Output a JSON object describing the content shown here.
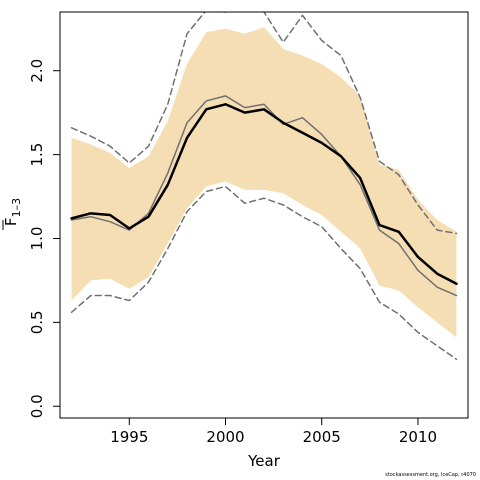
{
  "chart_data": {
    "type": "line",
    "title": "",
    "xlabel": "Year",
    "ylabel": "F̅ 1–3",
    "xlim": [
      1991.4,
      2012.6
    ],
    "ylim": [
      -0.07,
      2.35
    ],
    "x_ticks": [
      1995,
      2000,
      2005,
      2010
    ],
    "y_ticks": [
      0.0,
      0.5,
      1.0,
      1.5,
      2.0
    ],
    "y_tick_labels": [
      "0.0",
      "0.5",
      "1.0",
      "1.5",
      "2.0"
    ],
    "grid": false,
    "legend": "none",
    "x": [
      1992,
      1993,
      1994,
      1995,
      1996,
      1997,
      1998,
      1999,
      2000,
      2001,
      2002,
      2003,
      2004,
      2005,
      2006,
      2007,
      2008,
      2009,
      2010,
      2011,
      2012
    ],
    "band": {
      "color": "#f5deb3",
      "lower": [
        0.63,
        0.75,
        0.76,
        0.7,
        0.77,
        0.97,
        1.18,
        1.31,
        1.34,
        1.29,
        1.29,
        1.27,
        1.2,
        1.14,
        1.04,
        0.94,
        0.72,
        0.69,
        0.59,
        0.5,
        0.41
      ],
      "upper": [
        1.6,
        1.56,
        1.51,
        1.42,
        1.49,
        1.7,
        2.04,
        2.23,
        2.25,
        2.22,
        2.26,
        2.13,
        2.09,
        2.04,
        1.96,
        1.85,
        1.44,
        1.41,
        1.23,
        1.11,
        1.04
      ]
    },
    "series": [
      {
        "values": [
          1.12,
          1.15,
          1.14,
          1.06,
          1.13,
          1.32,
          1.6,
          1.77,
          1.8,
          1.75,
          1.77,
          1.69,
          1.63,
          1.57,
          1.49,
          1.36,
          1.08,
          1.04,
          0.89,
          0.79,
          0.73
        ],
        "color": "#000000",
        "style": "solid-thick"
      },
      {
        "values": [
          1.11,
          1.13,
          1.1,
          1.05,
          1.15,
          1.39,
          1.69,
          1.82,
          1.85,
          1.78,
          1.8,
          1.68,
          1.72,
          1.62,
          1.49,
          1.32,
          1.05,
          0.97,
          0.81,
          0.71,
          0.66
        ],
        "color": "#707070",
        "style": "solid-thin"
      },
      {
        "values": [
          0.56,
          0.66,
          0.66,
          0.63,
          0.74,
          0.94,
          1.16,
          1.28,
          1.31,
          1.21,
          1.24,
          1.2,
          1.13,
          1.07,
          0.94,
          0.82,
          0.62,
          0.55,
          0.44,
          0.36,
          0.28
        ],
        "color": "#707070",
        "style": "dashed"
      },
      {
        "values": [
          1.66,
          1.61,
          1.55,
          1.45,
          1.55,
          1.8,
          2.22,
          2.36,
          2.35,
          2.38,
          2.35,
          2.17,
          2.33,
          2.18,
          2.09,
          1.84,
          1.46,
          1.38,
          1.2,
          1.05,
          1.03
        ],
        "color": "#707070",
        "style": "dashed"
      }
    ],
    "credit": "stockassessment.org, IceCap, r4070"
  }
}
